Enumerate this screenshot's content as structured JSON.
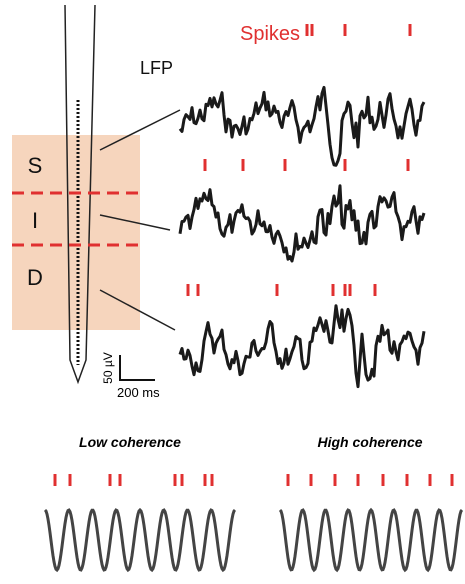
{
  "spikes_label": "Spikes",
  "lfp_label": "LFP",
  "layers": [
    "S",
    "I",
    "D"
  ],
  "scale_bar": {
    "voltage": "50 µV",
    "time": "200 ms"
  },
  "panels": {
    "low": "Low coherence",
    "high": "High coherence"
  }
}
